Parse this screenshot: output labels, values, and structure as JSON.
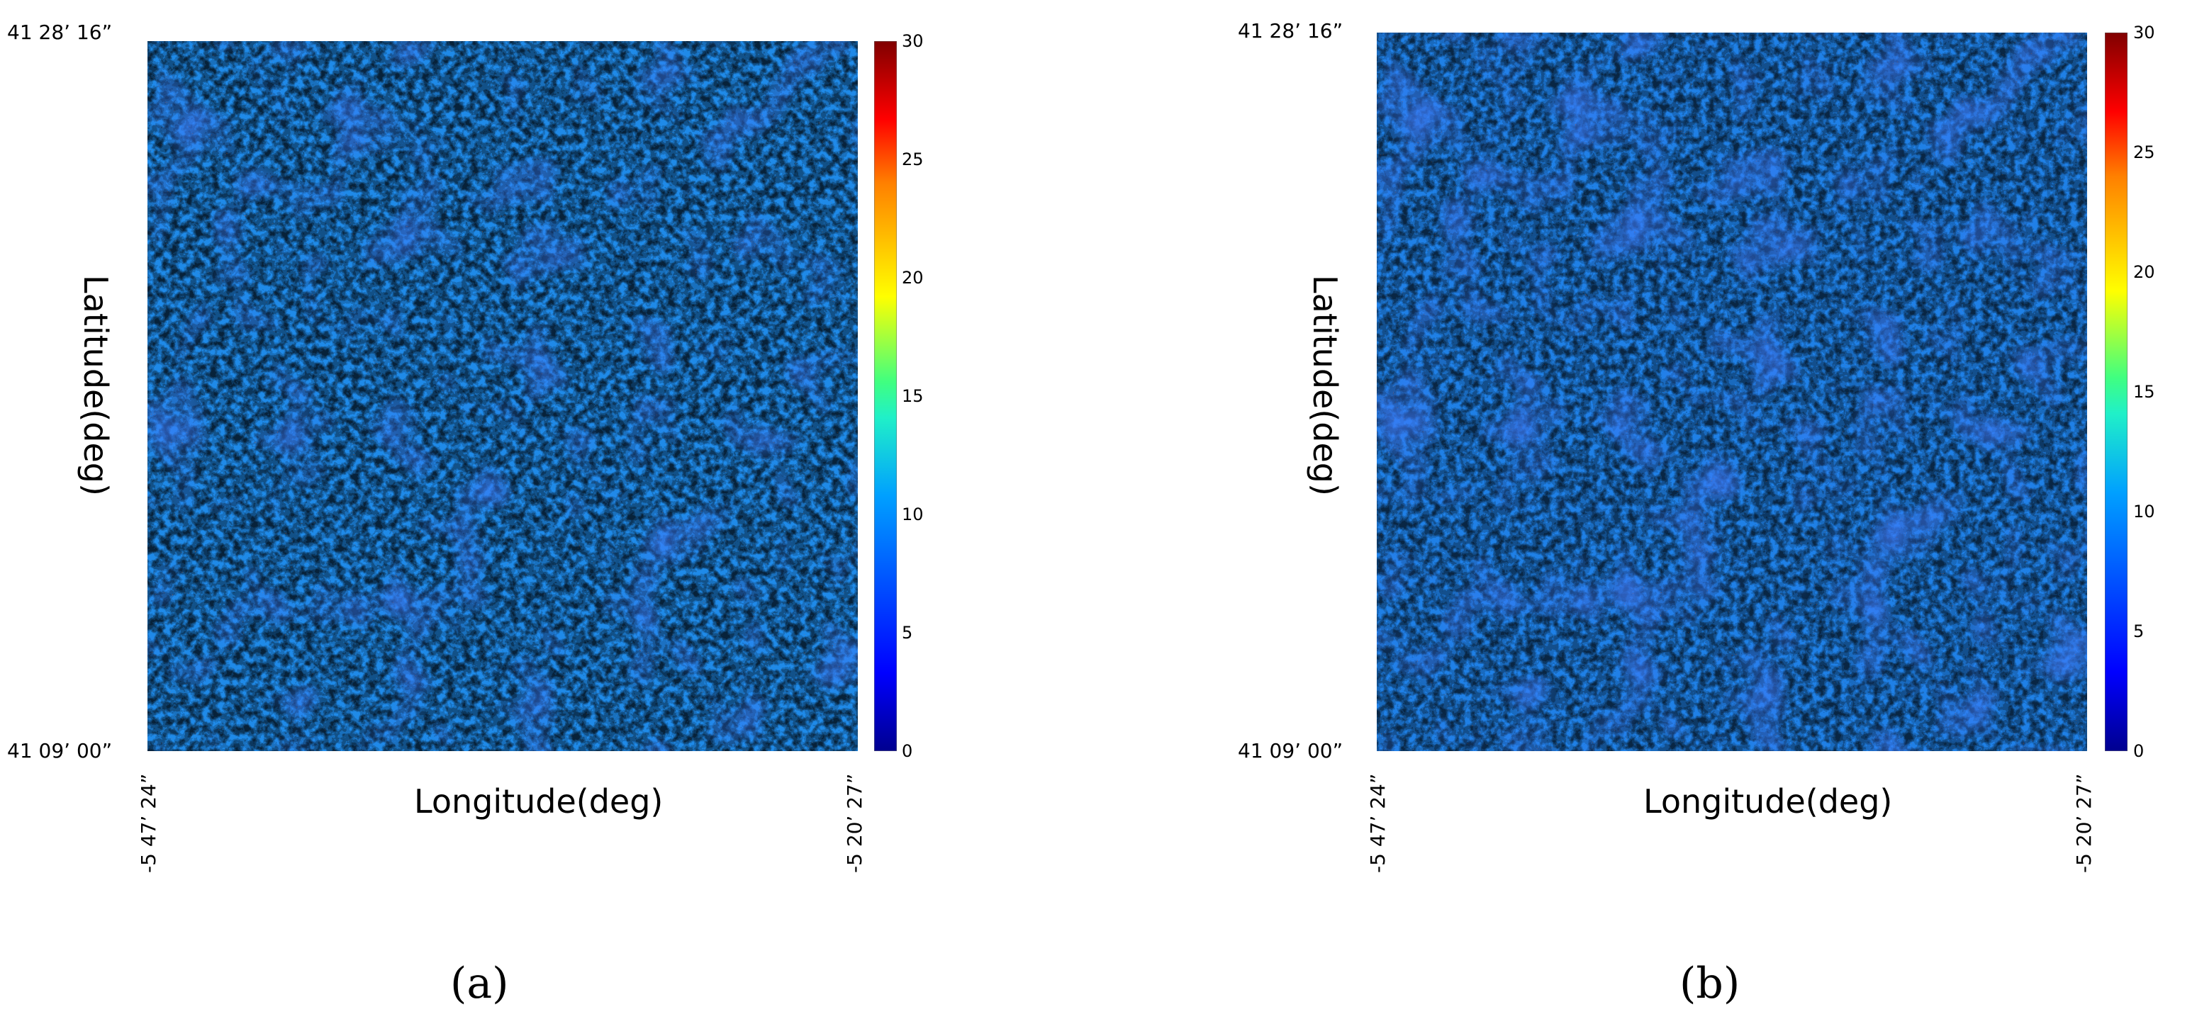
{
  "colors": {
    "colormap": [
      "#00008f",
      "#0000ff",
      "#0080ff",
      "#00ffff",
      "#80ff80",
      "#ffff00",
      "#ff8000",
      "#ff0000",
      "#800000"
    ]
  },
  "panels": [
    {
      "caption": "(a)",
      "lat_top": "41 28’ 16”",
      "lat_bottom": "41 09’ 00”",
      "lon_left": "-5 47’ 24”",
      "lon_right": "-5 20’ 27”",
      "xlabel": "Longitude(deg)",
      "ylabel": "Latitude(deg)",
      "colorbar": {
        "min": 0,
        "max": 30,
        "ticks": [
          "0",
          "5",
          "10",
          "15",
          "20",
          "25",
          "30"
        ]
      }
    },
    {
      "caption": "(b)",
      "lat_top": "41 28’ 16”",
      "lat_bottom": "41 09’ 00”",
      "lon_left": "-5 47’ 24”",
      "lon_right": "-5 20’ 27”",
      "xlabel": "Longitude(deg)",
      "ylabel": "Latitude(deg)",
      "colorbar": {
        "min": 0,
        "max": 30,
        "ticks": [
          "0",
          "5",
          "10",
          "15",
          "20",
          "25",
          "30"
        ]
      }
    }
  ]
}
